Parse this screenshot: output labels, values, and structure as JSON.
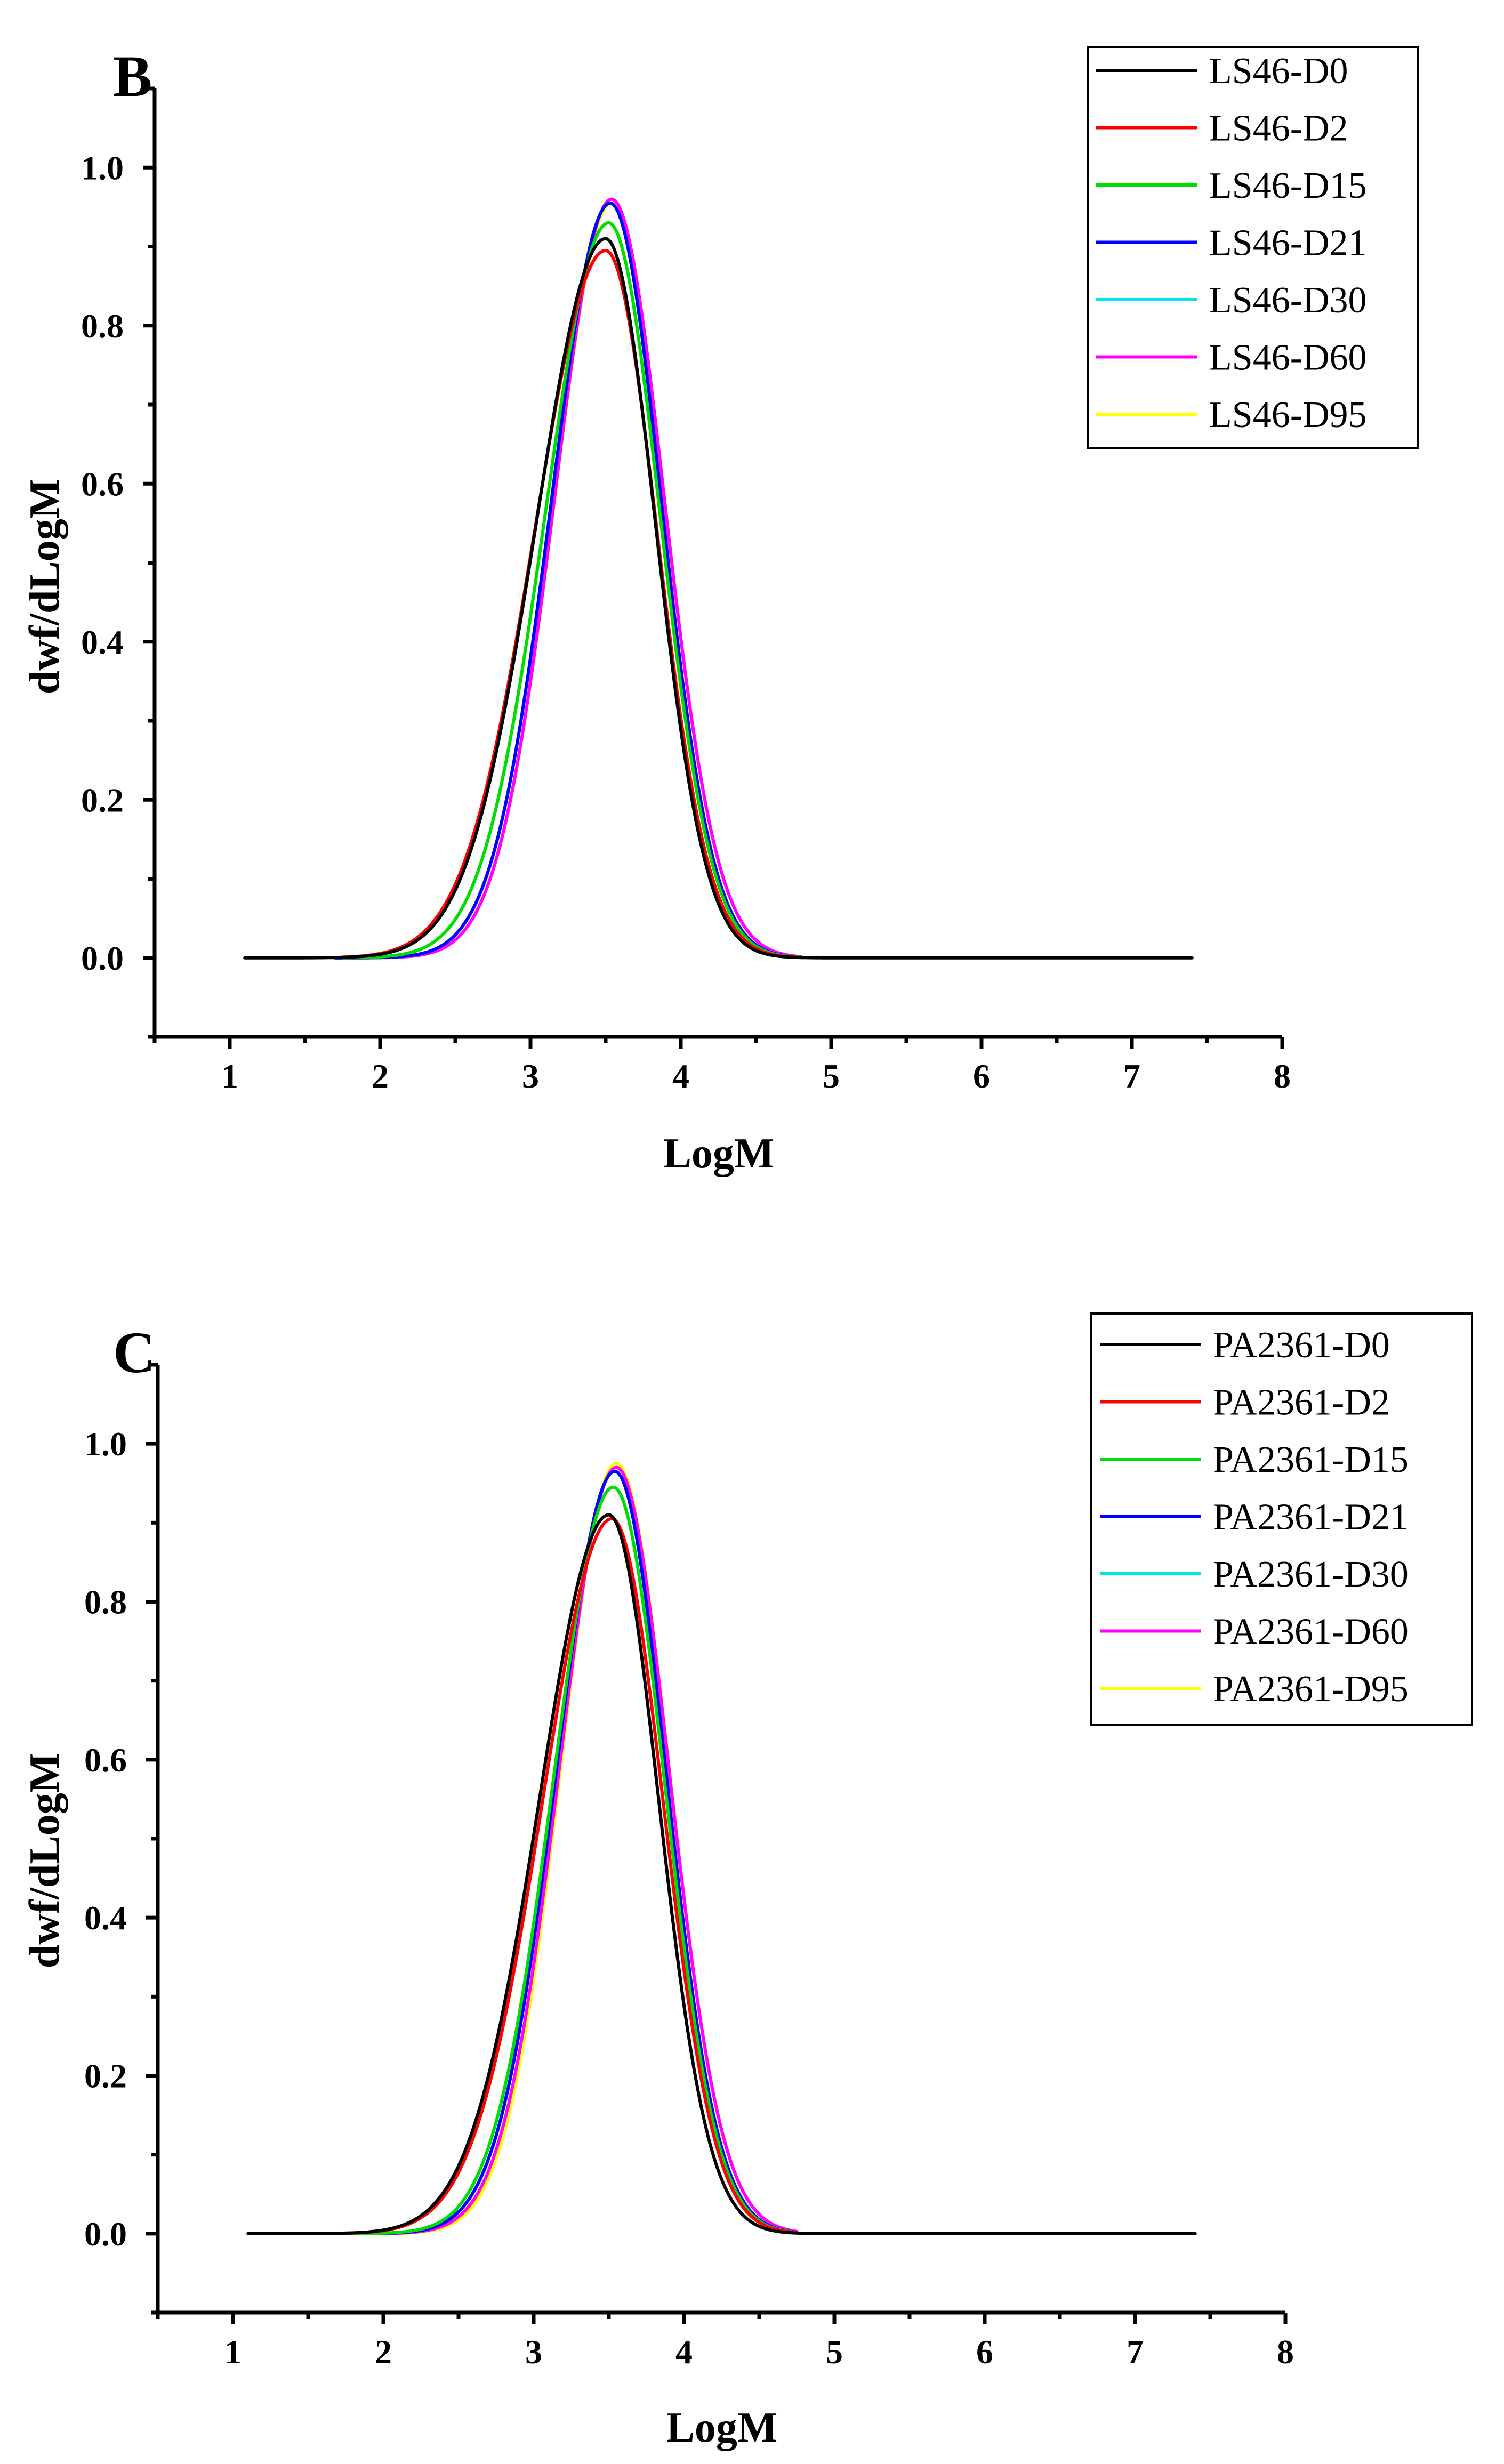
{
  "chart_data": [
    {
      "panel": "B",
      "type": "line",
      "title": "",
      "xlabel": "LogM",
      "ylabel": "dwf/dLogM",
      "xlim": [
        0.5,
        8
      ],
      "ylim": [
        -0.1,
        1.1
      ],
      "xticks": [
        1,
        2,
        3,
        4,
        5,
        6,
        7,
        8
      ],
      "yticks": [
        0.0,
        0.2,
        0.4,
        0.6,
        0.8,
        1.0
      ],
      "xtick_labels": [
        "1",
        "2",
        "3",
        "4",
        "5",
        "6",
        "7",
        "8"
      ],
      "ytick_labels": [
        "0.0",
        "0.2",
        "0.4",
        "0.6",
        "0.8",
        "1.0"
      ],
      "legend_position": "top-right",
      "series": [
        {
          "name": "LS46-D0",
          "color": "#000000",
          "peak_x": 3.5,
          "peak": 0.91,
          "sigma_left": 0.46,
          "sigma_right": 0.33,
          "x_start": 1.1,
          "x_end": 7.4
        },
        {
          "name": "LS46-D2",
          "color": "#ff0000",
          "peak_x": 3.5,
          "peak": 0.895,
          "sigma_left": 0.47,
          "sigma_right": 0.34,
          "x_start": 1.75,
          "x_end": 4.8
        },
        {
          "name": "LS46-D15",
          "color": "#00dd00",
          "peak_x": 3.52,
          "peak": 0.93,
          "sigma_left": 0.42,
          "sigma_right": 0.34,
          "x_start": 1.75,
          "x_end": 4.8
        },
        {
          "name": "LS46-D21",
          "color": "#0000ff",
          "peak_x": 3.53,
          "peak": 0.955,
          "sigma_left": 0.39,
          "sigma_right": 0.34,
          "x_start": 1.7,
          "x_end": 4.8
        },
        {
          "name": "LS46-D30",
          "color": "#00e5e5",
          "peak_x": 3.53,
          "peak": 0.955,
          "sigma_left": 0.39,
          "sigma_right": 0.34,
          "x_start": 1.7,
          "x_end": 4.8
        },
        {
          "name": "LS46-D60",
          "color": "#ff00ff",
          "peak_x": 3.54,
          "peak": 0.96,
          "sigma_left": 0.38,
          "sigma_right": 0.35,
          "x_start": 1.7,
          "x_end": 4.8
        },
        {
          "name": "LS46-D95",
          "color": "#ffff00",
          "peak_x": 3.54,
          "peak": 0.955,
          "sigma_left": 0.38,
          "sigma_right": 0.35,
          "x_start": 1.7,
          "x_end": 4.8
        }
      ]
    },
    {
      "panel": "C",
      "type": "line",
      "title": "",
      "xlabel": "LogM",
      "ylabel": "dwf/dLogM",
      "xlim": [
        0.5,
        8
      ],
      "ylim": [
        -0.1,
        1.1
      ],
      "xticks": [
        1,
        2,
        3,
        4,
        5,
        6,
        7,
        8
      ],
      "yticks": [
        0.0,
        0.2,
        0.4,
        0.6,
        0.8,
        1.0
      ],
      "xtick_labels": [
        "1",
        "2",
        "3",
        "4",
        "5",
        "6",
        "7",
        "8"
      ],
      "ytick_labels": [
        "0.0",
        "0.2",
        "0.4",
        "0.6",
        "0.8",
        "1.0"
      ],
      "legend_position": "top-right",
      "series": [
        {
          "name": "PA2361-D0",
          "color": "#000000",
          "peak_x": 3.5,
          "peak": 0.91,
          "sigma_left": 0.46,
          "sigma_right": 0.33,
          "x_start": 1.1,
          "x_end": 7.4
        },
        {
          "name": "PA2361-D2",
          "color": "#ff0000",
          "peak_x": 3.52,
          "peak": 0.905,
          "sigma_left": 0.46,
          "sigma_right": 0.34,
          "x_start": 1.75,
          "x_end": 4.75
        },
        {
          "name": "PA2361-D15",
          "color": "#00dd00",
          "peak_x": 3.53,
          "peak": 0.945,
          "sigma_left": 0.4,
          "sigma_right": 0.34,
          "x_start": 1.75,
          "x_end": 4.75
        },
        {
          "name": "PA2361-D21",
          "color": "#0000ff",
          "peak_x": 3.54,
          "peak": 0.965,
          "sigma_left": 0.39,
          "sigma_right": 0.34,
          "x_start": 1.75,
          "x_end": 4.75
        },
        {
          "name": "PA2361-D30",
          "color": "#00e5e5",
          "peak_x": 3.54,
          "peak": 0.965,
          "sigma_left": 0.39,
          "sigma_right": 0.34,
          "x_start": 1.75,
          "x_end": 4.75
        },
        {
          "name": "PA2361-D60",
          "color": "#ff00ff",
          "peak_x": 3.55,
          "peak": 0.97,
          "sigma_left": 0.38,
          "sigma_right": 0.35,
          "x_start": 1.75,
          "x_end": 4.75
        },
        {
          "name": "PA2361-D95",
          "color": "#ffff00",
          "peak_x": 3.55,
          "peak": 0.975,
          "sigma_left": 0.37,
          "sigma_right": 0.35,
          "x_start": 1.75,
          "x_end": 4.75
        }
      ]
    }
  ]
}
